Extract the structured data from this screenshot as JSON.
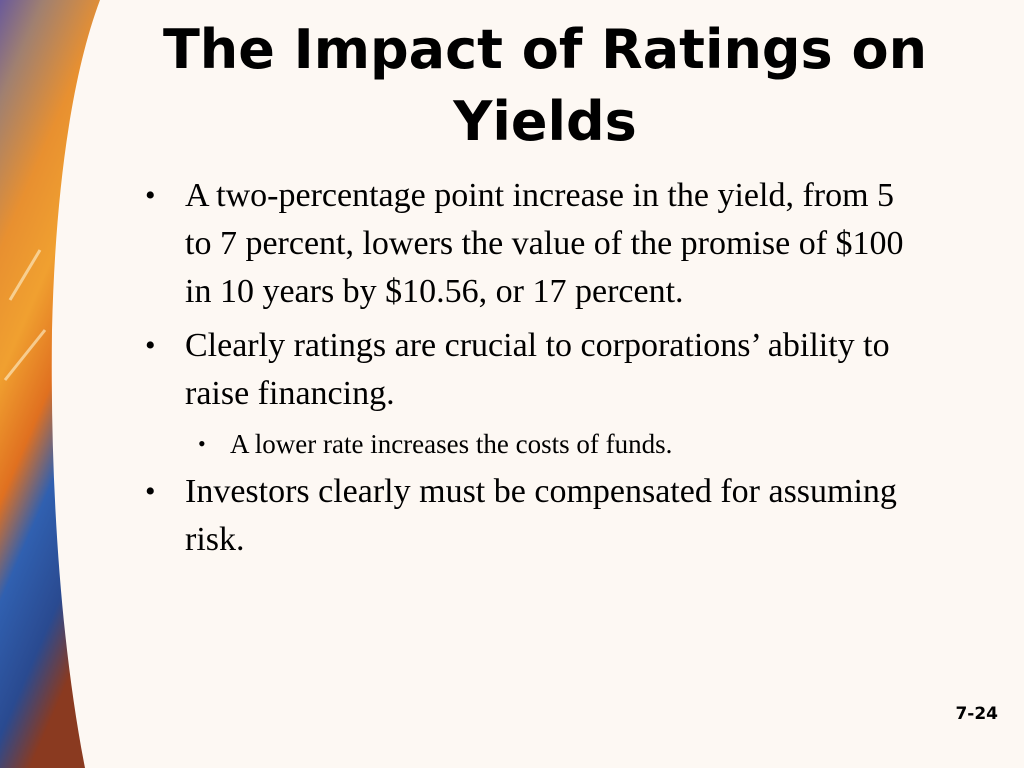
{
  "slide": {
    "title": "The Impact of Ratings on Yields",
    "bullets": [
      {
        "text": "A two-percentage point increase in the yield, from 5 to 7 percent, lowers the value of the promise of $100 in 10 years by $10.56, or 17 percent.",
        "sub": []
      },
      {
        "text": "Clearly ratings are crucial to corporations’ ability to raise financing.",
        "sub": [
          "A lower rate increases the costs of funds."
        ]
      },
      {
        "text": "Investors clearly must be compensated for assuming risk.",
        "sub": []
      }
    ],
    "page_number": "7-24"
  }
}
